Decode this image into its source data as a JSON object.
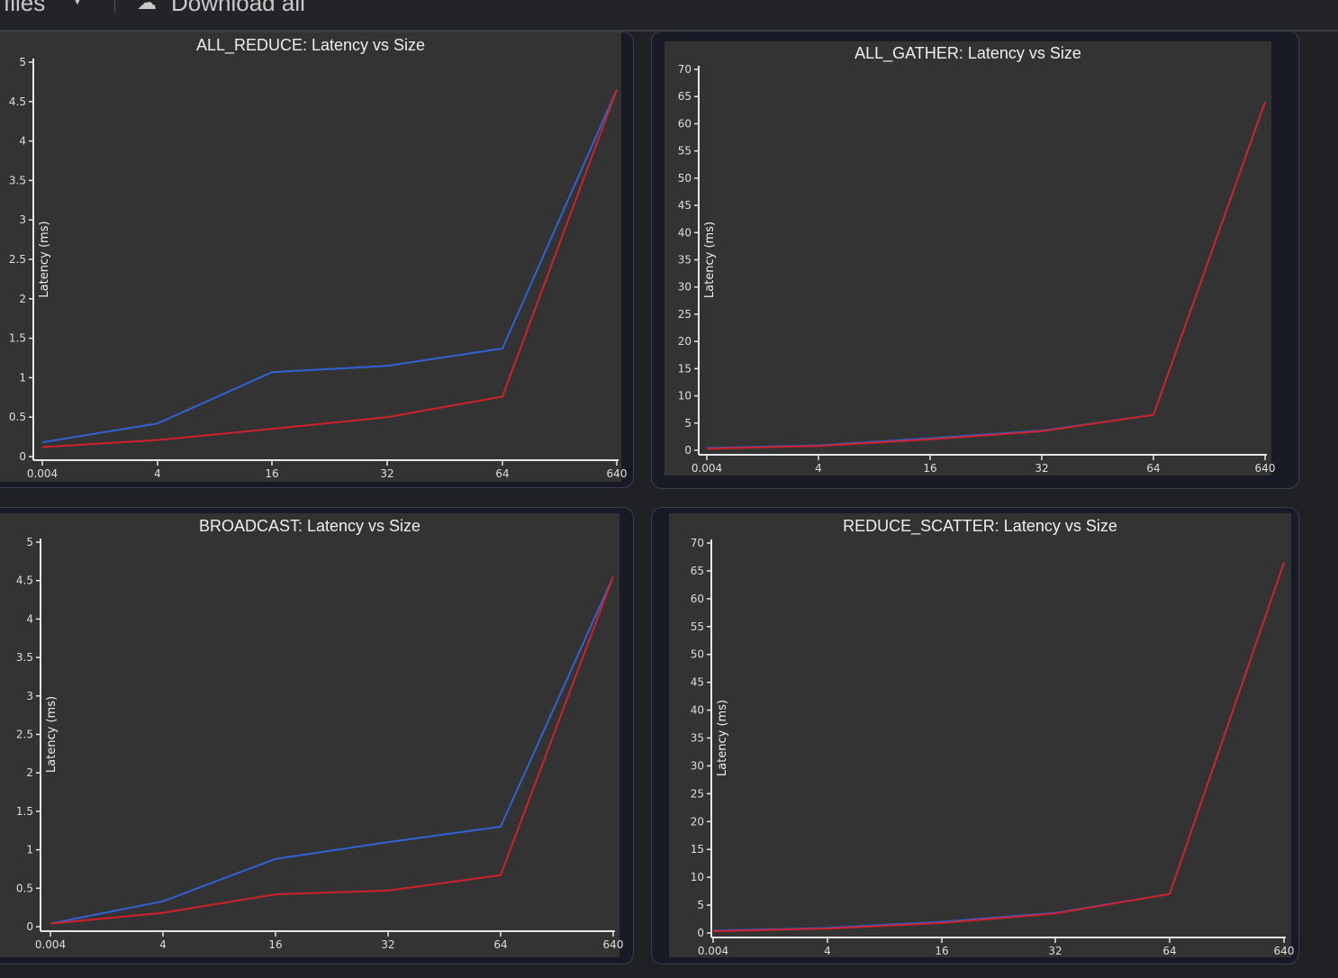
{
  "toolbar": {
    "files_label": "files",
    "download_label": "Download all"
  },
  "colors": {
    "series_a": "#2f62d6",
    "series_b": "#d0202a",
    "plot_bg": "#333333",
    "axis": "#e6e6e6"
  },
  "chart_data": [
    {
      "type": "line",
      "title": "ALL_REDUCE: Latency vs Size",
      "ylabel": "Latency (ms)",
      "xlabel": "",
      "categories": [
        "0.004",
        "4",
        "16",
        "32",
        "64",
        "640"
      ],
      "ylim": [
        0,
        5
      ],
      "yticks": [
        "0",
        "0.5",
        "1",
        "1.5",
        "2",
        "2.5",
        "3",
        "3.5",
        "4",
        "4.5",
        "5"
      ],
      "series": [
        {
          "name": "blue",
          "color": "#2f62d6",
          "values": [
            0.18,
            0.42,
            1.07,
            1.15,
            1.37,
            4.65
          ]
        },
        {
          "name": "red",
          "color": "#d0202a",
          "values": [
            0.12,
            0.21,
            0.35,
            0.5,
            0.76,
            4.65
          ]
        }
      ]
    },
    {
      "type": "line",
      "title": "ALL_GATHER: Latency vs Size",
      "ylabel": "Latency (ms)",
      "xlabel": "",
      "categories": [
        "0.004",
        "4",
        "16",
        "32",
        "64",
        "640"
      ],
      "ylim": [
        0,
        70
      ],
      "yticks": [
        "0",
        "5",
        "10",
        "15",
        "20",
        "25",
        "30",
        "35",
        "40",
        "45",
        "50",
        "55",
        "60",
        "65",
        "70"
      ],
      "series": [
        {
          "name": "blue",
          "color": "#2f62d6",
          "values": [
            0.4,
            0.9,
            2.2,
            3.6,
            6.5,
            64
          ]
        },
        {
          "name": "red",
          "color": "#d0202a",
          "values": [
            0.3,
            0.8,
            2.0,
            3.5,
            6.5,
            64
          ]
        }
      ]
    },
    {
      "type": "line",
      "title": "BROADCAST: Latency vs Size",
      "ylabel": "Latency (ms)",
      "xlabel": "",
      "categories": [
        "0.004",
        "4",
        "16",
        "32",
        "64",
        "640"
      ],
      "ylim": [
        0,
        5
      ],
      "yticks": [
        "0",
        "0.5",
        "1",
        "1.5",
        "2",
        "2.5",
        "3",
        "3.5",
        "4",
        "4.5",
        "5"
      ],
      "series": [
        {
          "name": "blue",
          "color": "#2f62d6",
          "values": [
            0.04,
            0.33,
            0.88,
            1.1,
            1.3,
            4.55
          ]
        },
        {
          "name": "red",
          "color": "#d0202a",
          "values": [
            0.04,
            0.18,
            0.42,
            0.47,
            0.67,
            4.55
          ]
        }
      ]
    },
    {
      "type": "line",
      "title": "REDUCE_SCATTER: Latency vs Size",
      "ylabel": "Latency (ms)",
      "xlabel": "",
      "categories": [
        "0.004",
        "4",
        "16",
        "32",
        "64",
        "640"
      ],
      "ylim": [
        0,
        70
      ],
      "yticks": [
        "0",
        "5",
        "10",
        "15",
        "20",
        "25",
        "30",
        "35",
        "40",
        "45",
        "50",
        "55",
        "60",
        "65",
        "70"
      ],
      "series": [
        {
          "name": "blue",
          "color": "#2f62d6",
          "values": [
            0.4,
            0.9,
            2.0,
            3.6,
            7,
            66.5
          ]
        },
        {
          "name": "red",
          "color": "#d0202a",
          "values": [
            0.3,
            0.8,
            1.8,
            3.5,
            7,
            66.5
          ]
        }
      ]
    }
  ]
}
